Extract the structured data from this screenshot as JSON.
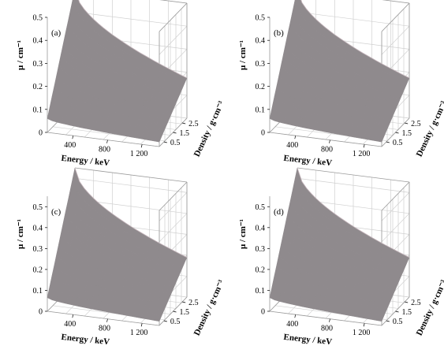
{
  "chart_data": [
    {
      "type": "surface",
      "panel_label": "(a)",
      "xlabel": "Energy / keV",
      "ylabel": "Density / g·cm⁻³",
      "zlabel": "μ / cm⁻¹",
      "x_ticks": [
        "400",
        "800",
        "1 200"
      ],
      "y_ticks": [
        "0.5",
        "1.5",
        "2.5"
      ],
      "z_ticks": [
        "0",
        "0.1",
        "0.2",
        "0.3",
        "0.4",
        "0.5"
      ],
      "xlim": [
        100,
        1400
      ],
      "ylim": [
        0,
        3
      ],
      "zlim": [
        0,
        0.5
      ],
      "grid": true,
      "surface_color": "#8f8a8d",
      "corner_values": {
        "min_energy_max_density": 0.5,
        "max_energy_max_density": 0.175,
        "min_energy_min_density": 0.06,
        "max_energy_min_density": 0.02
      }
    },
    {
      "type": "surface",
      "panel_label": "(b)",
      "xlabel": "Energy / keV",
      "ylabel": "Density / g·cm⁻³",
      "zlabel": "μ / cm⁻¹",
      "x_ticks": [
        "400",
        "800",
        "1 200"
      ],
      "y_ticks": [
        "0.5",
        "1.5",
        "2.5"
      ],
      "z_ticks": [
        "0",
        "0.1",
        "0.2",
        "0.3",
        "0.4",
        "0.5"
      ],
      "xlim": [
        100,
        1400
      ],
      "ylim": [
        0,
        3
      ],
      "zlim": [
        0,
        0.5
      ],
      "grid": true,
      "surface_color": "#8f8a8d",
      "corner_values": {
        "min_energy_max_density": 0.5,
        "max_energy_max_density": 0.175,
        "min_energy_min_density": 0.06,
        "max_energy_min_density": 0.02
      }
    },
    {
      "type": "surface",
      "panel_label": "(c)",
      "xlabel": "Energy / keV",
      "ylabel": "Density / g·cm⁻³",
      "zlabel": "μ / cm⁻¹",
      "x_ticks": [
        "400",
        "800",
        "1 200"
      ],
      "y_ticks": [
        "0.5",
        "1.5",
        "2.5"
      ],
      "z_ticks": [
        "0",
        "0.1",
        "0.2",
        "0.3",
        "0.4",
        "0.5"
      ],
      "xlim": [
        100,
        1400
      ],
      "ylim": [
        0,
        3
      ],
      "zlim": [
        0,
        0.55
      ],
      "grid": true,
      "surface_color": "#8f8a8d",
      "corner_values": {
        "min_energy_max_density": 0.55,
        "max_energy_max_density": 0.19,
        "min_energy_min_density": 0.065,
        "max_energy_min_density": 0.02
      }
    },
    {
      "type": "surface",
      "panel_label": "(d)",
      "xlabel": "Energy / keV",
      "ylabel": "Density / g·cm⁻³",
      "zlabel": "μ / cm⁻¹",
      "x_ticks": [
        "400",
        "800",
        "1 200"
      ],
      "y_ticks": [
        "0.5",
        "1.5",
        "2.5"
      ],
      "z_ticks": [
        "0",
        "0.1",
        "0.2",
        "0.3",
        "0.4",
        "0.5"
      ],
      "xlim": [
        100,
        1400
      ],
      "ylim": [
        0,
        3
      ],
      "zlim": [
        0,
        0.55
      ],
      "grid": true,
      "surface_color": "#8f8a8d",
      "corner_values": {
        "min_energy_max_density": 0.55,
        "max_energy_max_density": 0.19,
        "min_energy_min_density": 0.065,
        "max_energy_min_density": 0.02
      }
    }
  ]
}
